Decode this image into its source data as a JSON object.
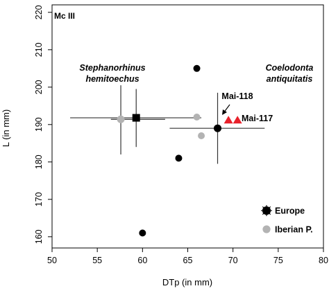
{
  "chart_data": {
    "type": "scatter",
    "panel_label": "Mc III",
    "xlabel": "DTp (in mm)",
    "ylabel": "L (in mm)",
    "xlim": [
      50,
      80
    ],
    "ylim": [
      157,
      222
    ],
    "x_ticks": [
      50,
      55,
      60,
      65,
      70,
      75,
      80
    ],
    "y_ticks": [
      160,
      170,
      180,
      190,
      200,
      210,
      220
    ],
    "grid": false,
    "legend_position": "bottom-right",
    "colors": {
      "europe": "#000000",
      "iberian": "#b3b3b3",
      "mai": "#e8202a",
      "error_bar": "#333333"
    },
    "series": [
      {
        "name": "Europe",
        "marker": "circle",
        "color": "#000000",
        "points": [
          {
            "x": 66.0,
            "y": 205.0
          },
          {
            "x": 64.0,
            "y": 181.0
          },
          {
            "x": 60.0,
            "y": 161.0
          }
        ]
      },
      {
        "name": "Iberian P.",
        "marker": "circle",
        "color": "#b3b3b3",
        "points": [
          {
            "x": 66.0,
            "y": 192.0
          },
          {
            "x": 66.5,
            "y": 187.0
          }
        ]
      }
    ],
    "group_means": [
      {
        "group": "Stephanorhinus hemitoechus",
        "region": "Europe",
        "marker": "square",
        "color": "#000000",
        "x": 59.3,
        "y": 191.8,
        "x_range": [
          52.0,
          66.5
        ],
        "y_range": [
          184.0,
          199.5
        ]
      },
      {
        "group": "Stephanorhinus hemitoechus",
        "region": "Iberian P.",
        "marker": "circle",
        "color": "#b3b3b3",
        "x": 57.6,
        "y": 191.4,
        "x_range": [
          56.5,
          62.5
        ],
        "y_range": [
          182.0,
          200.5
        ]
      },
      {
        "group": "Coelodonta antiquitatis",
        "region": "Europe",
        "marker": "circle",
        "color": "#000000",
        "x": 68.3,
        "y": 189.0,
        "x_range": [
          63.0,
          73.5
        ],
        "y_range": [
          179.5,
          198.5
        ]
      }
    ],
    "specimens": [
      {
        "label": "Mai-118",
        "marker": "triangle",
        "color": "#e8202a",
        "x": 69.5,
        "y": 191.3
      },
      {
        "label": "Mai-117",
        "marker": "triangle",
        "color": "#e8202a",
        "x": 70.5,
        "y": 191.3
      }
    ],
    "annotations": {
      "group_left": [
        "Stephanorhinus",
        "hemitoechus"
      ],
      "group_right": [
        "Coelodonta",
        "antiquitatis"
      ]
    },
    "legend": [
      {
        "label": "Europe",
        "color": "#000000"
      },
      {
        "label": "Iberian P.",
        "color": "#b3b3b3"
      }
    ]
  }
}
